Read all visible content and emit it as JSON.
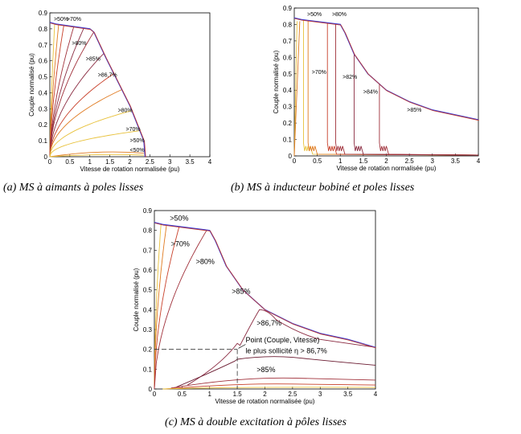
{
  "captions": {
    "a": "(a) MS à aimants à poles lisses",
    "b": "(b) MS à inducteur bobiné et poles  lisses",
    "c": "(c) MS à double excitation à pôles lisses"
  },
  "colors": {
    "envelope_blue": "#3b3bd6",
    "envelope_red": "#c43a2a",
    "c50": "#e8c13a",
    "c70": "#e07a20",
    "c80": "#c8402a",
    "c85": "#a0303a",
    "c867": "#8a2a40",
    "c90": "#6a1a30"
  },
  "chart_data": [
    {
      "id": "a",
      "type": "line",
      "title": "",
      "xlabel": "Vitesse de rotation normalisée (pu)",
      "ylabel": "Couple normalisé (pu)",
      "xlim": [
        0,
        4
      ],
      "ylim": [
        0,
        0.9
      ],
      "xticks": [
        0,
        0.5,
        1,
        1.5,
        2,
        2.5,
        3,
        3.5,
        4
      ],
      "yticks": [
        0,
        0.1,
        0.2,
        0.3,
        0.4,
        0.5,
        0.6,
        0.7,
        0.8,
        0.9
      ],
      "envelope": {
        "x": [
          0,
          0.15,
          1.0,
          1.1,
          1.4,
          2.0,
          2.35,
          2.38
        ],
        "y": [
          0.84,
          0.83,
          0.8,
          0.78,
          0.62,
          0.32,
          0.1,
          0.0
        ]
      },
      "annotations": [
        {
          "text": ">50%",
          "x": 0.1,
          "y": 0.85
        },
        {
          "text": ">70%",
          "x": 0.42,
          "y": 0.85
        },
        {
          "text": ">80%",
          "x": 0.55,
          "y": 0.7
        },
        {
          "text": ">85%",
          "x": 0.9,
          "y": 0.6
        },
        {
          "text": ">86,7%",
          "x": 1.2,
          "y": 0.5
        },
        {
          "text": ">80%",
          "x": 1.7,
          "y": 0.28
        },
        {
          "text": ">70%",
          "x": 1.9,
          "y": 0.16
        },
        {
          "text": ">50%",
          "x": 2.0,
          "y": 0.09
        },
        {
          "text": "<50%",
          "x": 2.0,
          "y": 0.03
        }
      ]
    },
    {
      "id": "b",
      "type": "line",
      "title": "",
      "xlabel": "Vitesse de rotation normalisée (pu)",
      "ylabel": "Couple normalisé (pu)",
      "xlim": [
        0,
        4
      ],
      "ylim": [
        0,
        0.9
      ],
      "xticks": [
        0,
        0.5,
        1,
        1.5,
        2,
        2.5,
        3,
        3.5,
        4
      ],
      "yticks": [
        0,
        0.1,
        0.2,
        0.3,
        0.4,
        0.5,
        0.6,
        0.7,
        0.8,
        0.9
      ],
      "envelope": {
        "x": [
          0,
          0.15,
          1.0,
          1.1,
          1.3,
          1.6,
          2.0,
          2.5,
          3.0,
          3.5,
          4.0
        ],
        "y": [
          0.84,
          0.83,
          0.8,
          0.75,
          0.62,
          0.5,
          0.4,
          0.33,
          0.28,
          0.25,
          0.22
        ]
      },
      "annotations": [
        {
          "text": ">50%",
          "x": 0.28,
          "y": 0.85
        },
        {
          "text": ">80%",
          "x": 0.82,
          "y": 0.85
        },
        {
          "text": ">70%",
          "x": 0.38,
          "y": 0.5
        },
        {
          "text": ">82%",
          "x": 1.05,
          "y": 0.47
        },
        {
          "text": ">84%",
          "x": 1.5,
          "y": 0.38
        },
        {
          "text": ">85%",
          "x": 2.45,
          "y": 0.27
        }
      ]
    },
    {
      "id": "c",
      "type": "line",
      "title": "",
      "xlabel": "Vitesse de rotation normalisée (pu)",
      "ylabel": "Couple normalisé (pu)",
      "xlim": [
        0,
        4
      ],
      "ylim": [
        0,
        0.9
      ],
      "xticks": [
        0,
        0.5,
        1,
        1.5,
        2,
        2.5,
        3,
        3.5,
        4
      ],
      "yticks": [
        0,
        0.1,
        0.2,
        0.3,
        0.4,
        0.5,
        0.6,
        0.7,
        0.8,
        0.9
      ],
      "envelope": {
        "x": [
          0,
          0.15,
          1.0,
          1.1,
          1.3,
          1.6,
          2.0,
          2.5,
          3.0,
          3.5,
          4.0
        ],
        "y": [
          0.84,
          0.83,
          0.8,
          0.75,
          0.62,
          0.5,
          0.4,
          0.33,
          0.28,
          0.25,
          0.21
        ]
      },
      "reference_point": {
        "x": 1.5,
        "y": 0.2
      },
      "annotations": [
        {
          "text": ">50%",
          "x": 0.28,
          "y": 0.85
        },
        {
          "text": ">70%",
          "x": 0.3,
          "y": 0.72
        },
        {
          "text": ">80%",
          "x": 0.75,
          "y": 0.63
        },
        {
          "text": ">85%",
          "x": 1.4,
          "y": 0.48
        },
        {
          "text": ">86,7%",
          "x": 1.85,
          "y": 0.32
        },
        {
          "text": "Point (Couple, Vitesse)",
          "x": 1.65,
          "y": 0.235
        },
        {
          "text": "le plus sollicité η > 86,7%",
          "x": 1.65,
          "y": 0.18
        },
        {
          "text": ">85%",
          "x": 1.85,
          "y": 0.085
        }
      ]
    }
  ]
}
